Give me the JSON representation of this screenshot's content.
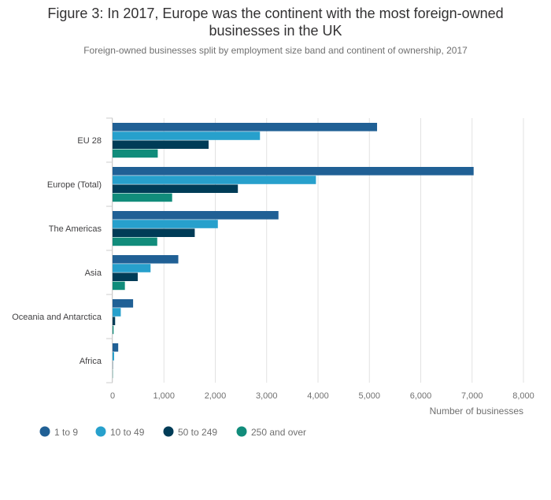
{
  "chart_data": {
    "type": "bar",
    "orientation": "horizontal",
    "title": "Figure 3: In 2017, Europe was the continent with the most foreign-owned businesses in the UK",
    "subtitle": "Foreign-owned businesses split by employment size band and continent of ownership, 2017",
    "categories": [
      "EU 28",
      "Europe (Total)",
      "The Americas",
      "Asia",
      "Oceania and Antarctica",
      "Africa"
    ],
    "series": [
      {
        "name": "1 to 9",
        "color": "#206095",
        "values": [
          5150,
          7030,
          3230,
          1280,
          400,
          110
        ]
      },
      {
        "name": "10 to 49",
        "color": "#27a0cc",
        "values": [
          2870,
          3960,
          2050,
          740,
          160,
          30
        ]
      },
      {
        "name": "50 to 249",
        "color": "#003c57",
        "values": [
          1870,
          2440,
          1600,
          490,
          50,
          5
        ]
      },
      {
        "name": "250 and over",
        "color": "#118c7b",
        "values": [
          880,
          1160,
          870,
          240,
          20,
          5
        ]
      }
    ],
    "xlabel": "Number of businesses",
    "ylabel": "",
    "xlim": [
      0,
      8000
    ],
    "xticks": [
      0,
      1000,
      2000,
      3000,
      4000,
      5000,
      6000,
      7000,
      8000
    ],
    "xtick_labels": [
      "0",
      "1,000",
      "2,000",
      "3,000",
      "4,000",
      "5,000",
      "6,000",
      "7,000",
      "8,000"
    ],
    "grid": true,
    "legend_position": "bottom-left"
  }
}
